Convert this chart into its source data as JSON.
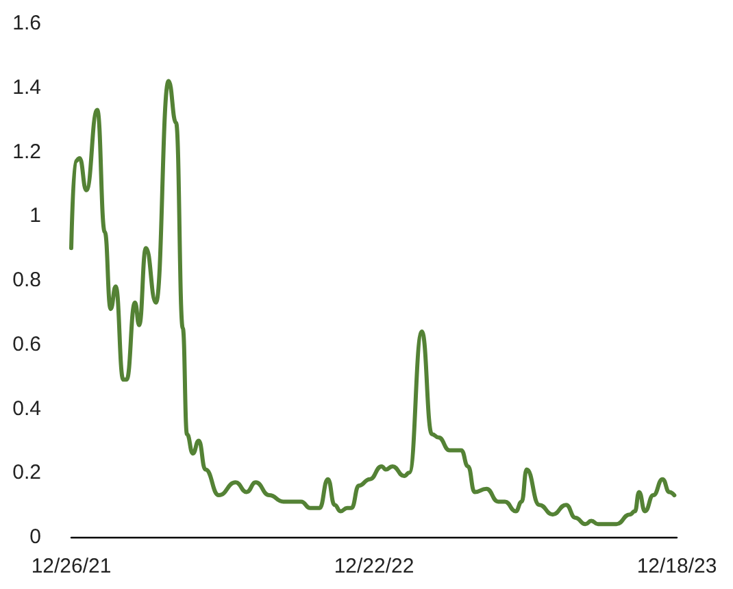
{
  "chart_data": {
    "type": "line",
    "color": "#548235",
    "line_style": "solid",
    "marker": "none",
    "grid": false,
    "x": [
      "2021-12-26",
      "2021-12-31",
      "2022-01-05",
      "2022-01-13",
      "2022-01-26",
      "2022-02-04",
      "2022-02-11",
      "2022-02-17",
      "2022-02-26",
      "2022-03-02",
      "2022-03-12",
      "2022-03-17",
      "2022-03-25",
      "2022-04-06",
      "2022-04-21",
      "2022-04-30",
      "2022-05-08",
      "2022-05-13",
      "2022-05-20",
      "2022-05-27",
      "2022-06-04",
      "2022-06-20",
      "2022-07-10",
      "2022-07-23",
      "2022-08-03",
      "2022-08-19",
      "2022-09-05",
      "2022-09-26",
      "2022-10-07",
      "2022-10-18",
      "2022-10-28",
      "2022-11-05",
      "2022-11-12",
      "2022-11-20",
      "2022-11-25",
      "2022-12-04",
      "2022-12-17",
      "2022-12-31",
      "2023-01-05",
      "2023-01-13",
      "2023-01-27",
      "2023-02-02",
      "2023-02-17",
      "2023-03-01",
      "2023-03-09",
      "2023-03-22",
      "2023-04-05",
      "2023-04-13",
      "2023-04-21",
      "2023-05-05",
      "2023-05-19",
      "2023-05-27",
      "2023-06-09",
      "2023-06-16",
      "2023-06-22",
      "2023-07-07",
      "2023-07-23",
      "2023-08-08",
      "2023-08-19",
      "2023-08-31",
      "2023-09-07",
      "2023-09-15",
      "2023-10-07",
      "2023-10-23",
      "2023-10-29",
      "2023-11-03",
      "2023-11-10",
      "2023-11-20",
      "2023-12-01",
      "2023-12-09",
      "2023-12-15"
    ],
    "values": [
      0.9,
      1.17,
      1.18,
      1.08,
      1.33,
      0.95,
      0.71,
      0.78,
      0.49,
      0.49,
      0.73,
      0.66,
      0.9,
      0.73,
      1.42,
      1.29,
      0.65,
      0.32,
      0.26,
      0.3,
      0.21,
      0.13,
      0.17,
      0.14,
      0.17,
      0.13,
      0.11,
      0.11,
      0.09,
      0.09,
      0.18,
      0.1,
      0.08,
      0.09,
      0.09,
      0.16,
      0.18,
      0.22,
      0.21,
      0.22,
      0.19,
      0.2,
      0.64,
      0.32,
      0.31,
      0.27,
      0.27,
      0.22,
      0.14,
      0.15,
      0.11,
      0.11,
      0.08,
      0.11,
      0.21,
      0.1,
      0.07,
      0.1,
      0.06,
      0.04,
      0.05,
      0.04,
      0.04,
      0.07,
      0.08,
      0.14,
      0.08,
      0.13,
      0.18,
      0.14,
      0.13
    ],
    "xlim": [
      "2021-12-26",
      "2023-12-18"
    ],
    "xticks": [
      {
        "value": "2021-12-26",
        "label": "12/26/21"
      },
      {
        "value": "2022-12-22",
        "label": "12/22/22"
      },
      {
        "value": "2023-12-18",
        "label": "12/18/23"
      }
    ],
    "ylim": [
      0,
      1.6
    ],
    "yticks": [
      0,
      0.2,
      0.4,
      0.6,
      0.8,
      1,
      1.2,
      1.4,
      1.6
    ]
  }
}
